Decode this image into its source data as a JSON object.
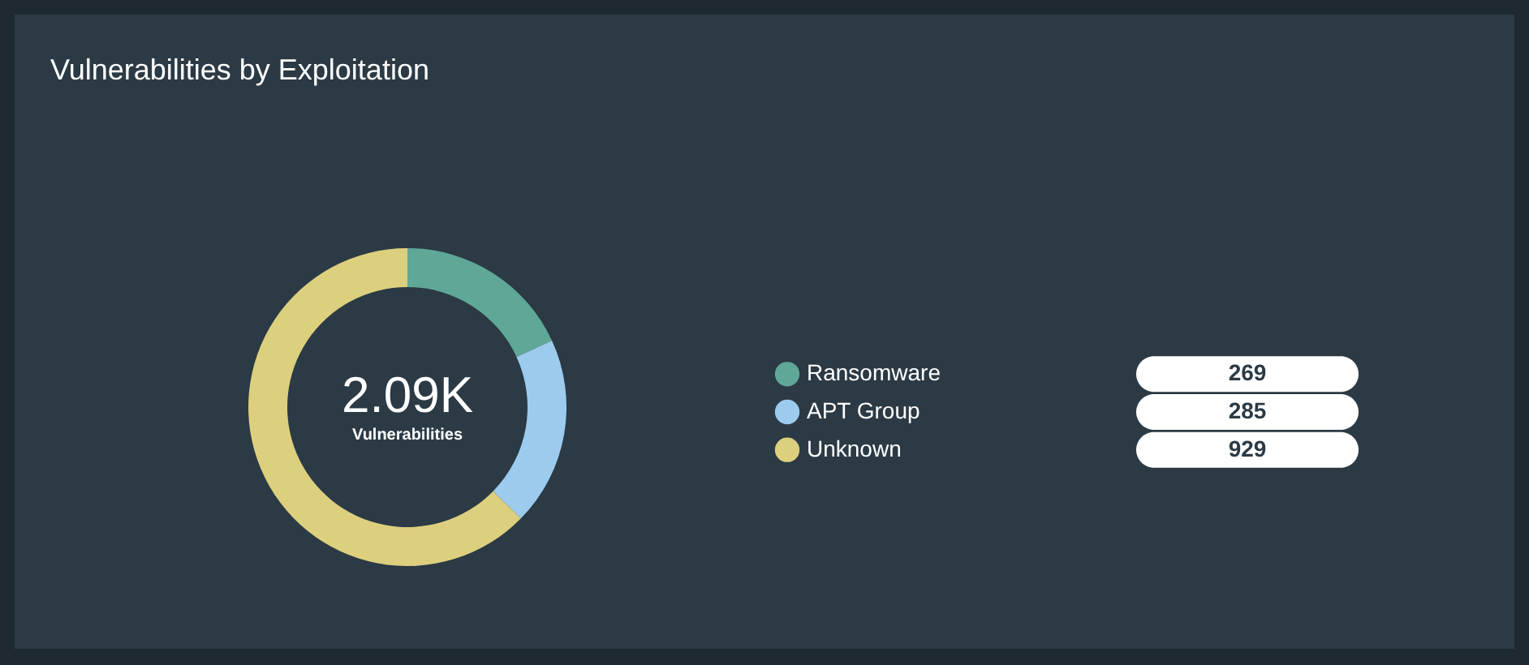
{
  "chart_data": {
    "type": "donut",
    "title": "Vulnerabilities by Exploitation",
    "categories": [
      "Ransomware",
      "APT Group",
      "Unknown"
    ],
    "values": [
      269,
      285,
      929
    ],
    "colors": [
      "#5fa898",
      "#9ccbed",
      "#dccf7e"
    ],
    "annotations": [
      "2.09K",
      "Vulnerabilities"
    ],
    "legend": "right",
    "data_labels": true
  }
}
